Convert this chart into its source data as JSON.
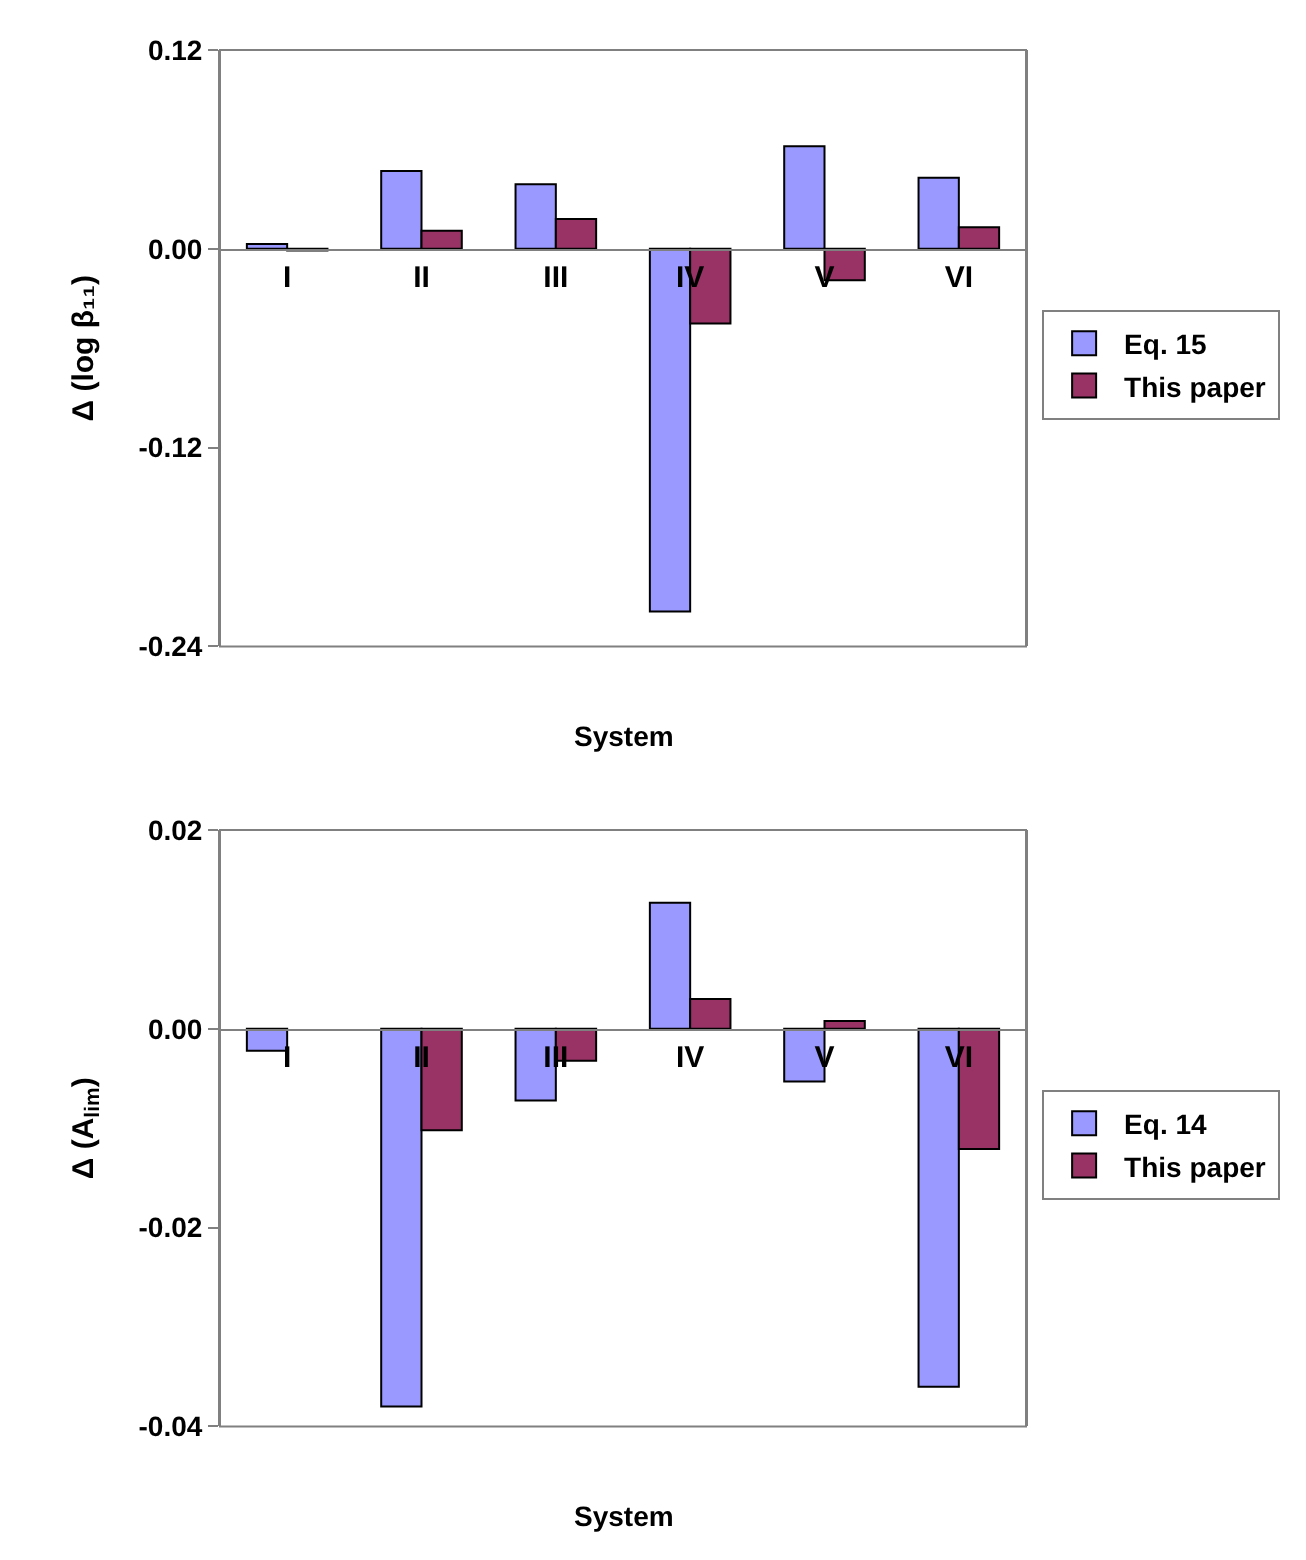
{
  "chart_data": [
    {
      "type": "bar",
      "xlabel": "System",
      "ylabel": "Δ (log β₁₁)",
      "categories": [
        "I",
        "II",
        "III",
        "IV",
        "V",
        "VI"
      ],
      "series": [
        {
          "name": "Eq. 15",
          "color": "#9999ff",
          "values": [
            0.003,
            0.047,
            0.039,
            -0.219,
            0.062,
            0.043
          ]
        },
        {
          "name": "This paper",
          "color": "#993366",
          "values": [
            -0.001,
            0.011,
            0.018,
            -0.045,
            -0.019,
            0.013
          ]
        }
      ],
      "ylim": [
        -0.24,
        0.12
      ],
      "yticks": [
        0.12,
        {
          "value": 0,
          "label": "0.00"
        },
        -0.12,
        -0.24
      ],
      "grid": false,
      "legend": "right"
    },
    {
      "type": "bar",
      "xlabel": "System",
      "ylabel": "Δ (A$_{lim}$)",
      "categories": [
        "I",
        "II",
        "III",
        "IV",
        "V",
        "VI"
      ],
      "series": [
        {
          "name": "Eq. 14",
          "color": "#9999ff",
          "values": [
            -0.0022,
            -0.038,
            -0.0072,
            0.0127,
            -0.0053,
            -0.036
          ]
        },
        {
          "name": "This paper",
          "color": "#993366",
          "values": [
            null,
            -0.0102,
            -0.0032,
            0.003,
            0.0008,
            -0.0121
          ]
        }
      ],
      "ylim": [
        -0.04,
        0.02
      ],
      "yticks": [
        0.02,
        {
          "value": 0,
          "label": "0.00"
        },
        -0.02,
        -0.04
      ],
      "grid": false,
      "legend": "right"
    }
  ]
}
